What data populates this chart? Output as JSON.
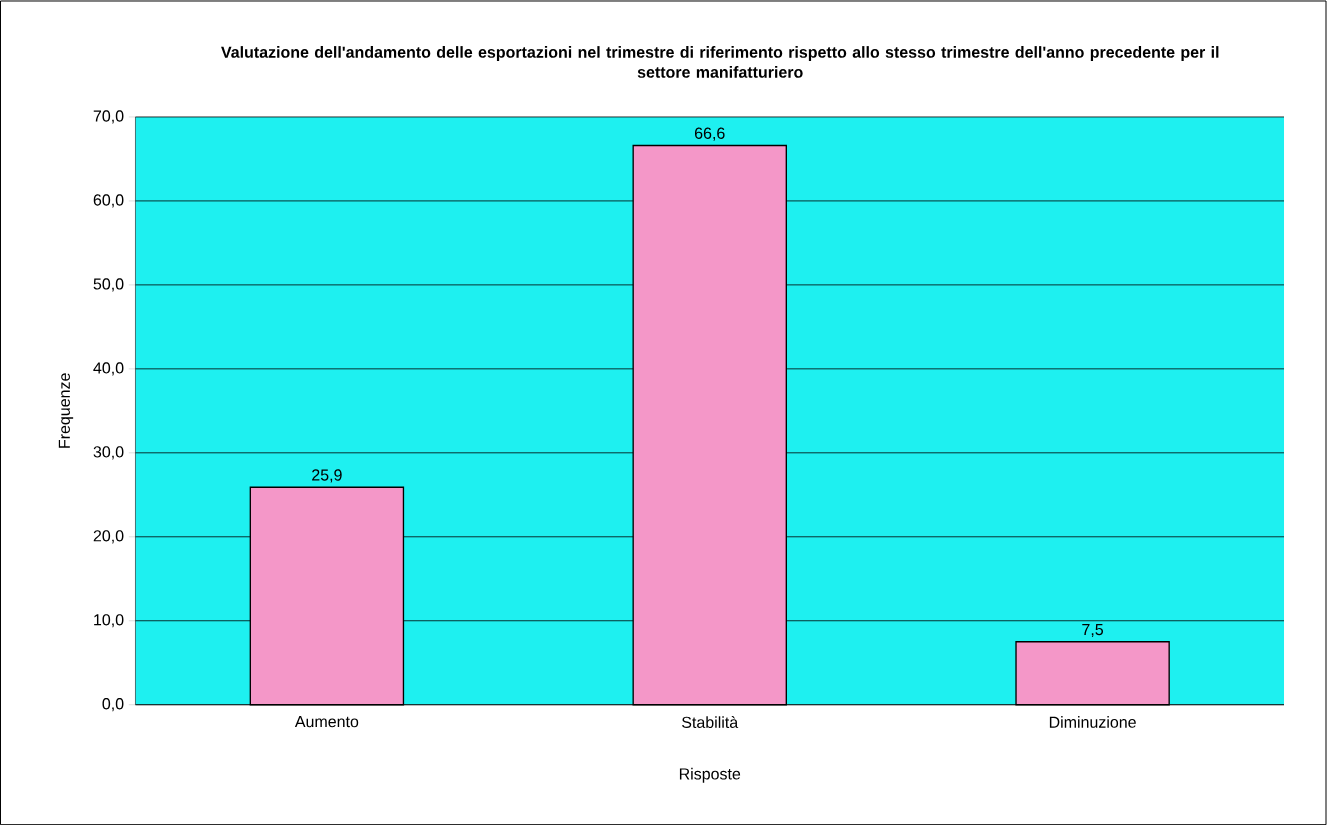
{
  "chart_data": {
    "type": "bar",
    "title": "Valutazione dell'andamento delle esportazioni nel trimestre di riferimento rispetto allo stesso trimestre dell'anno precedente per il settore manifatturiero",
    "xlabel": "Risposte",
    "ylabel": "Frequenze",
    "categories": [
      "Aumento",
      "Stabilità",
      "Diminuzione"
    ],
    "values": [
      25.9,
      66.6,
      7.5
    ],
    "value_labels": [
      "25,9",
      "66,6",
      "7,5"
    ],
    "color": "#f497c8",
    "ylim": [
      0,
      70
    ],
    "yticks": [
      {
        "value": 0,
        "label": "0,0"
      },
      {
        "value": 10,
        "label": "10,0"
      },
      {
        "value": 20,
        "label": "20,0"
      },
      {
        "value": 30,
        "label": "30,0"
      },
      {
        "value": 40,
        "label": "40,0"
      },
      {
        "value": 50,
        "label": "50,0"
      },
      {
        "value": 60,
        "label": "60,0"
      },
      {
        "value": 70,
        "label": "70,0"
      }
    ],
    "grid": "y"
  }
}
